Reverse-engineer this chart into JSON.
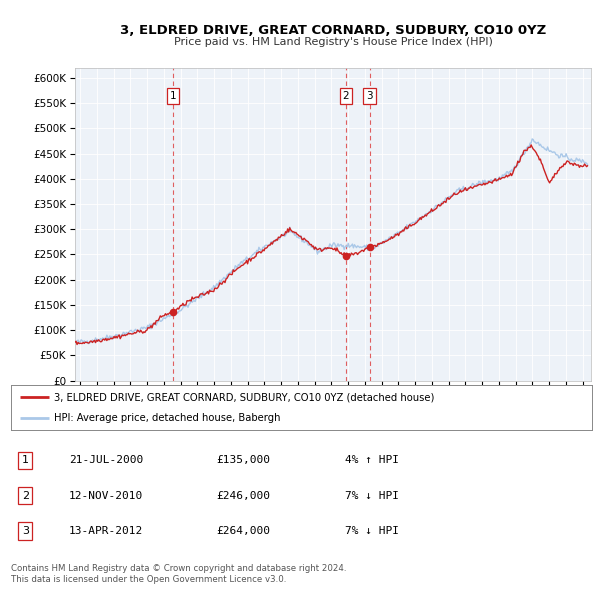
{
  "title": "3, ELDRED DRIVE, GREAT CORNARD, SUDBURY, CO10 0YZ",
  "subtitle": "Price paid vs. HM Land Registry's House Price Index (HPI)",
  "legend_line1": "3, ELDRED DRIVE, GREAT CORNARD, SUDBURY, CO10 0YZ (detached house)",
  "legend_line2": "HPI: Average price, detached house, Babergh",
  "footer1": "Contains HM Land Registry data © Crown copyright and database right 2024.",
  "footer2": "This data is licensed under the Open Government Licence v3.0.",
  "transactions": [
    {
      "num": 1,
      "date": "21-JUL-2000",
      "price": 135000,
      "price_str": "£135,000",
      "pct": "4%",
      "dir": "↑",
      "year": 2000.54
    },
    {
      "num": 2,
      "date": "12-NOV-2010",
      "price": 246000,
      "price_str": "£246,000",
      "pct": "7%",
      "dir": "↓",
      "year": 2010.87
    },
    {
      "num": 3,
      "date": "13-APR-2012",
      "price": 264000,
      "price_str": "£264,000",
      "pct": "7%",
      "dir": "↓",
      "year": 2012.28
    }
  ],
  "hpi_color": "#aac8e8",
  "price_color": "#cc2222",
  "vline_color": "#dd4444",
  "bg_color": "#edf2f8",
  "grid_color": "#ffffff",
  "ylim": [
    0,
    620000
  ],
  "xlim": [
    1994.7,
    2025.5
  ],
  "yticks": [
    0,
    50000,
    100000,
    150000,
    200000,
    250000,
    300000,
    350000,
    400000,
    450000,
    500000,
    550000,
    600000
  ],
  "xticks": [
    1995,
    1996,
    1997,
    1998,
    1999,
    2000,
    2001,
    2002,
    2003,
    2004,
    2005,
    2006,
    2007,
    2008,
    2009,
    2010,
    2011,
    2012,
    2013,
    2014,
    2015,
    2016,
    2017,
    2018,
    2019,
    2020,
    2021,
    2022,
    2023,
    2024,
    2025
  ]
}
